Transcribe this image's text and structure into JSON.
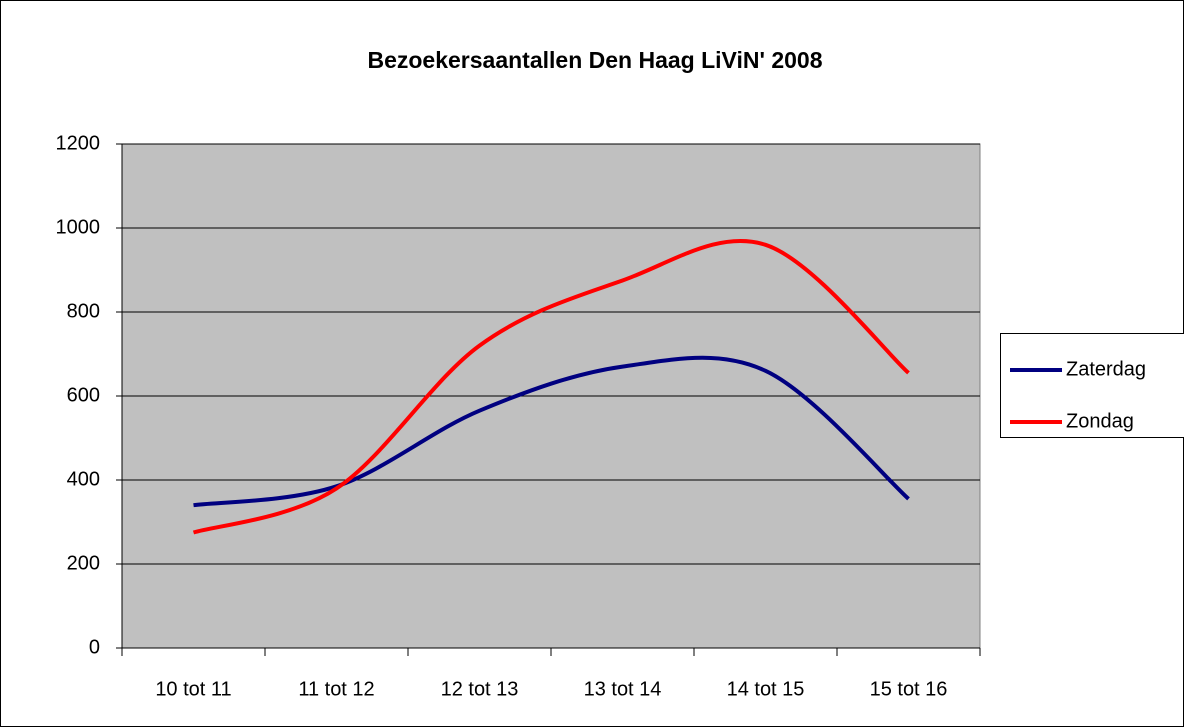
{
  "chart_data": {
    "type": "line",
    "title": "Bezoekersaantallen Den Haag LiViN' 2008",
    "categories": [
      "10 tot 11",
      "11 tot 12",
      "12 tot 13",
      "13 tot 14",
      "14 tot 15",
      "15 tot 16"
    ],
    "series": [
      {
        "name": "Zaterdag",
        "color": "#000080",
        "values": [
          340,
          385,
          565,
          670,
          660,
          355
        ]
      },
      {
        "name": "Zondag",
        "color": "#ff0000",
        "values": [
          275,
          380,
          720,
          875,
          960,
          655
        ]
      }
    ],
    "ylim": [
      0,
      1200
    ],
    "yticks": [
      0,
      200,
      400,
      600,
      800,
      1000,
      1200
    ],
    "grid": true,
    "smooth": true,
    "legend": "right"
  }
}
